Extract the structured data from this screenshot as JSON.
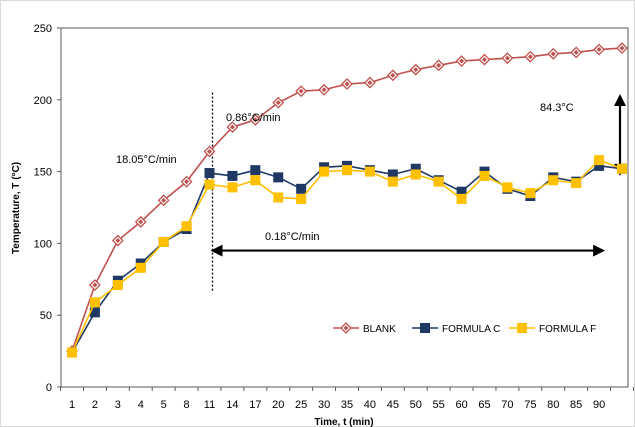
{
  "chart_data": {
    "type": "line",
    "title": "",
    "xlabel": "Time, t (min)",
    "ylabel": "Temperature, T (°C)",
    "ylim": [
      0,
      250
    ],
    "yticks": [
      0,
      50,
      100,
      150,
      200,
      250
    ],
    "grid": false,
    "legend_position": "bottom-right",
    "categories": [
      "1",
      "2",
      "3",
      "4",
      "5",
      "8",
      "11",
      "14",
      "17",
      "20",
      "25",
      "30",
      "35",
      "40",
      "45",
      "50",
      "55",
      "60",
      "65",
      "70",
      "75",
      "80",
      "85",
      "90",
      ""
    ],
    "series": [
      {
        "name": "BLANK",
        "color": "#C0504D",
        "marker": "diamond",
        "values": [
          25,
          71,
          102,
          115,
          130,
          143,
          164,
          181,
          186,
          198,
          206,
          207,
          211,
          212,
          217,
          221,
          224,
          227,
          228,
          229,
          230,
          232,
          233,
          235,
          236
        ]
      },
      {
        "name": "FORMULA C",
        "color": "#1F3864",
        "marker": "square",
        "values": [
          24,
          52,
          74,
          86,
          101,
          110,
          149,
          147,
          151,
          146,
          138,
          153,
          154,
          151,
          148,
          152,
          144,
          136,
          150,
          138,
          133,
          146,
          143,
          154,
          152
        ]
      },
      {
        "name": "FORMULA F",
        "color": "#FFC000",
        "marker": "square",
        "values": [
          24,
          59,
          71,
          83,
          101,
          112,
          141,
          139,
          144,
          132,
          131,
          150,
          151,
          150,
          143,
          148,
          143,
          131,
          147,
          139,
          135,
          144,
          142,
          158,
          152
        ]
      }
    ],
    "annotations": [
      {
        "text": "18.05°C/min"
      },
      {
        "text": "0.86°C/min"
      },
      {
        "text": "84.3°C"
      },
      {
        "text": "0.18°C/min"
      }
    ]
  }
}
